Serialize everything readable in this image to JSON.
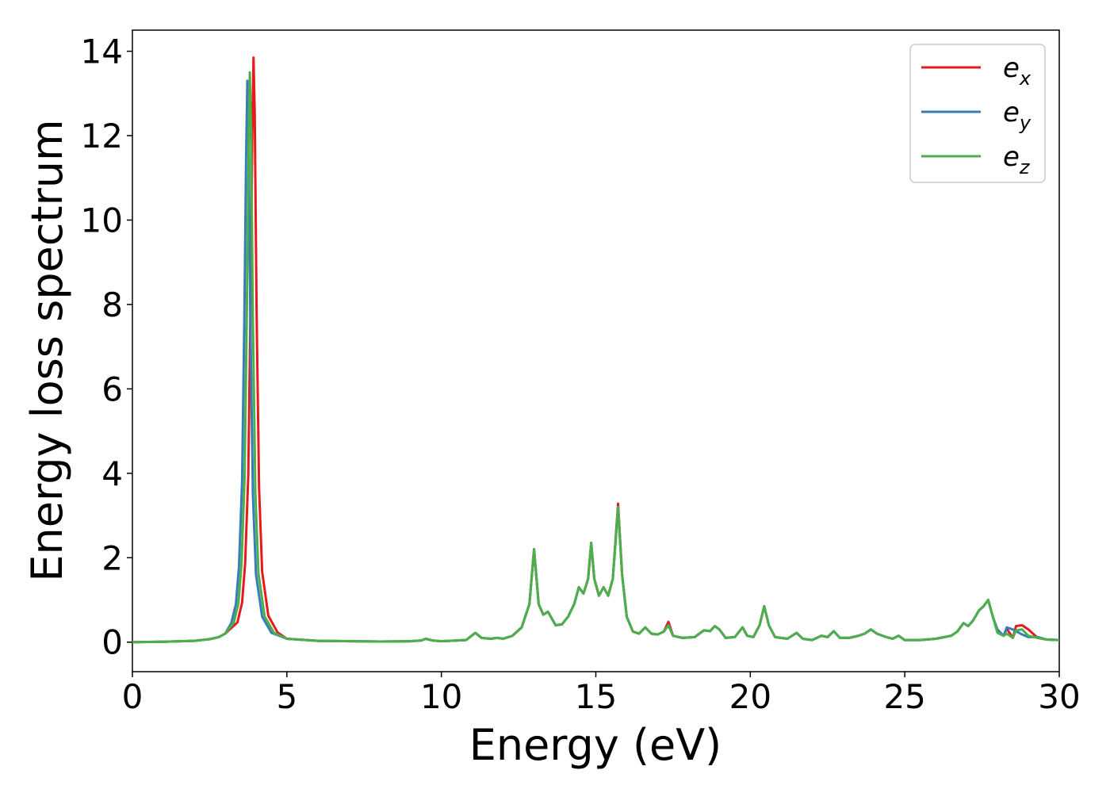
{
  "chart_data": {
    "type": "line",
    "title": "",
    "xlabel": "Energy (eV)",
    "ylabel": "Energy loss spectrum",
    "xlim": [
      0,
      30
    ],
    "ylim": [
      -0.7,
      14.5
    ],
    "xticks": [
      0,
      5,
      10,
      15,
      20,
      25,
      30
    ],
    "yticks": [
      0,
      2,
      4,
      6,
      8,
      10,
      12,
      14
    ],
    "xtick_labels": [
      "0",
      "5",
      "10",
      "15",
      "20",
      "25",
      "30"
    ],
    "ytick_labels": [
      "0",
      "2",
      "4",
      "6",
      "8",
      "10",
      "12",
      "14"
    ],
    "grid": false,
    "legend_position": "top-right",
    "base_points": [
      [
        0,
        0.0
      ],
      [
        1,
        0.01
      ],
      [
        2,
        0.03
      ],
      [
        2.5,
        0.07
      ],
      [
        2.8,
        0.12
      ],
      [
        3.0,
        0.2
      ],
      [
        3.2,
        0.45
      ],
      [
        3.35,
        0.9
      ],
      [
        3.45,
        1.8
      ],
      [
        3.55,
        3.8
      ],
      [
        3.62,
        7.5
      ],
      [
        3.68,
        11.5
      ],
      [
        3.72,
        13.3
      ],
      [
        3.76,
        12.0
      ],
      [
        3.82,
        7.5
      ],
      [
        3.9,
        3.5
      ],
      [
        4.0,
        1.6
      ],
      [
        4.2,
        0.6
      ],
      [
        4.5,
        0.22
      ],
      [
        5,
        0.08
      ],
      [
        6,
        0.03
      ],
      [
        8,
        0.015
      ],
      [
        9,
        0.02
      ],
      [
        9.35,
        0.04
      ],
      [
        9.5,
        0.08
      ],
      [
        9.7,
        0.04
      ],
      [
        10,
        0.02
      ],
      [
        10.8,
        0.05
      ],
      [
        11.1,
        0.22
      ],
      [
        11.3,
        0.1
      ],
      [
        11.6,
        0.08
      ],
      [
        11.8,
        0.1
      ],
      [
        12.0,
        0.08
      ],
      [
        12.3,
        0.15
      ],
      [
        12.6,
        0.35
      ],
      [
        12.85,
        0.9
      ],
      [
        13.0,
        2.2
      ],
      [
        13.15,
        0.9
      ],
      [
        13.3,
        0.65
      ],
      [
        13.45,
        0.72
      ],
      [
        13.7,
        0.4
      ],
      [
        13.9,
        0.42
      ],
      [
        14.1,
        0.6
      ],
      [
        14.3,
        0.9
      ],
      [
        14.45,
        1.3
      ],
      [
        14.6,
        1.15
      ],
      [
        14.75,
        1.5
      ],
      [
        14.85,
        2.35
      ],
      [
        14.95,
        1.5
      ],
      [
        15.1,
        1.1
      ],
      [
        15.25,
        1.3
      ],
      [
        15.4,
        1.1
      ],
      [
        15.55,
        1.5
      ],
      [
        15.72,
        3.2
      ],
      [
        15.85,
        1.6
      ],
      [
        16.0,
        0.6
      ],
      [
        16.2,
        0.25
      ],
      [
        16.4,
        0.2
      ],
      [
        16.6,
        0.35
      ],
      [
        16.8,
        0.2
      ],
      [
        17.0,
        0.18
      ],
      [
        17.2,
        0.25
      ],
      [
        17.35,
        0.4
      ],
      [
        17.5,
        0.15
      ],
      [
        17.8,
        0.1
      ],
      [
        18.2,
        0.12
      ],
      [
        18.5,
        0.28
      ],
      [
        18.7,
        0.26
      ],
      [
        18.85,
        0.38
      ],
      [
        19.0,
        0.3
      ],
      [
        19.2,
        0.1
      ],
      [
        19.5,
        0.12
      ],
      [
        19.75,
        0.35
      ],
      [
        19.9,
        0.15
      ],
      [
        20.1,
        0.12
      ],
      [
        20.3,
        0.4
      ],
      [
        20.45,
        0.85
      ],
      [
        20.6,
        0.4
      ],
      [
        20.8,
        0.12
      ],
      [
        21.2,
        0.08
      ],
      [
        21.5,
        0.22
      ],
      [
        21.7,
        0.08
      ],
      [
        22.0,
        0.05
      ],
      [
        22.3,
        0.15
      ],
      [
        22.5,
        0.12
      ],
      [
        22.7,
        0.26
      ],
      [
        22.9,
        0.1
      ],
      [
        23.2,
        0.1
      ],
      [
        23.5,
        0.15
      ],
      [
        23.7,
        0.2
      ],
      [
        23.9,
        0.3
      ],
      [
        24.1,
        0.2
      ],
      [
        24.4,
        0.12
      ],
      [
        24.6,
        0.08
      ],
      [
        24.8,
        0.15
      ],
      [
        25.0,
        0.05
      ],
      [
        25.5,
        0.05
      ],
      [
        26.0,
        0.08
      ],
      [
        26.5,
        0.15
      ],
      [
        26.7,
        0.25
      ],
      [
        26.9,
        0.45
      ],
      [
        27.05,
        0.38
      ],
      [
        27.2,
        0.5
      ],
      [
        27.4,
        0.75
      ],
      [
        27.55,
        0.85
      ],
      [
        27.7,
        1.0
      ],
      [
        27.85,
        0.6
      ],
      [
        28.0,
        0.3
      ],
      [
        28.2,
        0.15
      ],
      [
        28.5,
        0.1
      ],
      [
        29.0,
        0.15
      ],
      [
        29.3,
        0.1
      ],
      [
        29.6,
        0.06
      ],
      [
        30,
        0.05
      ]
    ],
    "series": [
      {
        "name": "e_x",
        "label_main": "e",
        "label_sub": "x",
        "color": "#e41a1c",
        "peak_x": 3.92,
        "peak_y": 13.85,
        "base_scale": 1.0,
        "overrides": [
          [
            15.72,
            3.28
          ],
          [
            17.35,
            0.48
          ],
          [
            28.0,
            0.25
          ],
          [
            28.3,
            0.32
          ],
          [
            28.6,
            0.38
          ],
          [
            28.8,
            0.4
          ],
          [
            29.0,
            0.3
          ],
          [
            29.3,
            0.1
          ]
        ]
      },
      {
        "name": "e_y",
        "label_main": "e",
        "label_sub": "y",
        "color": "#377eb8",
        "peak_x": 3.72,
        "peak_y": 13.3,
        "base_scale": 1.0,
        "overrides": [
          [
            28.0,
            0.3
          ],
          [
            28.3,
            0.35
          ],
          [
            28.5,
            0.3
          ],
          [
            28.8,
            0.18
          ],
          [
            29.0,
            0.12
          ],
          [
            29.3,
            0.12
          ]
        ]
      },
      {
        "name": "e_z",
        "label_main": "e",
        "label_sub": "z",
        "color": "#4daf4a",
        "peak_x": 3.8,
        "peak_y": 13.5,
        "base_scale": 1.0,
        "overrides": [
          [
            28.0,
            0.22
          ],
          [
            28.3,
            0.2
          ],
          [
            28.6,
            0.28
          ],
          [
            28.8,
            0.3
          ],
          [
            29.0,
            0.15
          ]
        ]
      }
    ]
  }
}
